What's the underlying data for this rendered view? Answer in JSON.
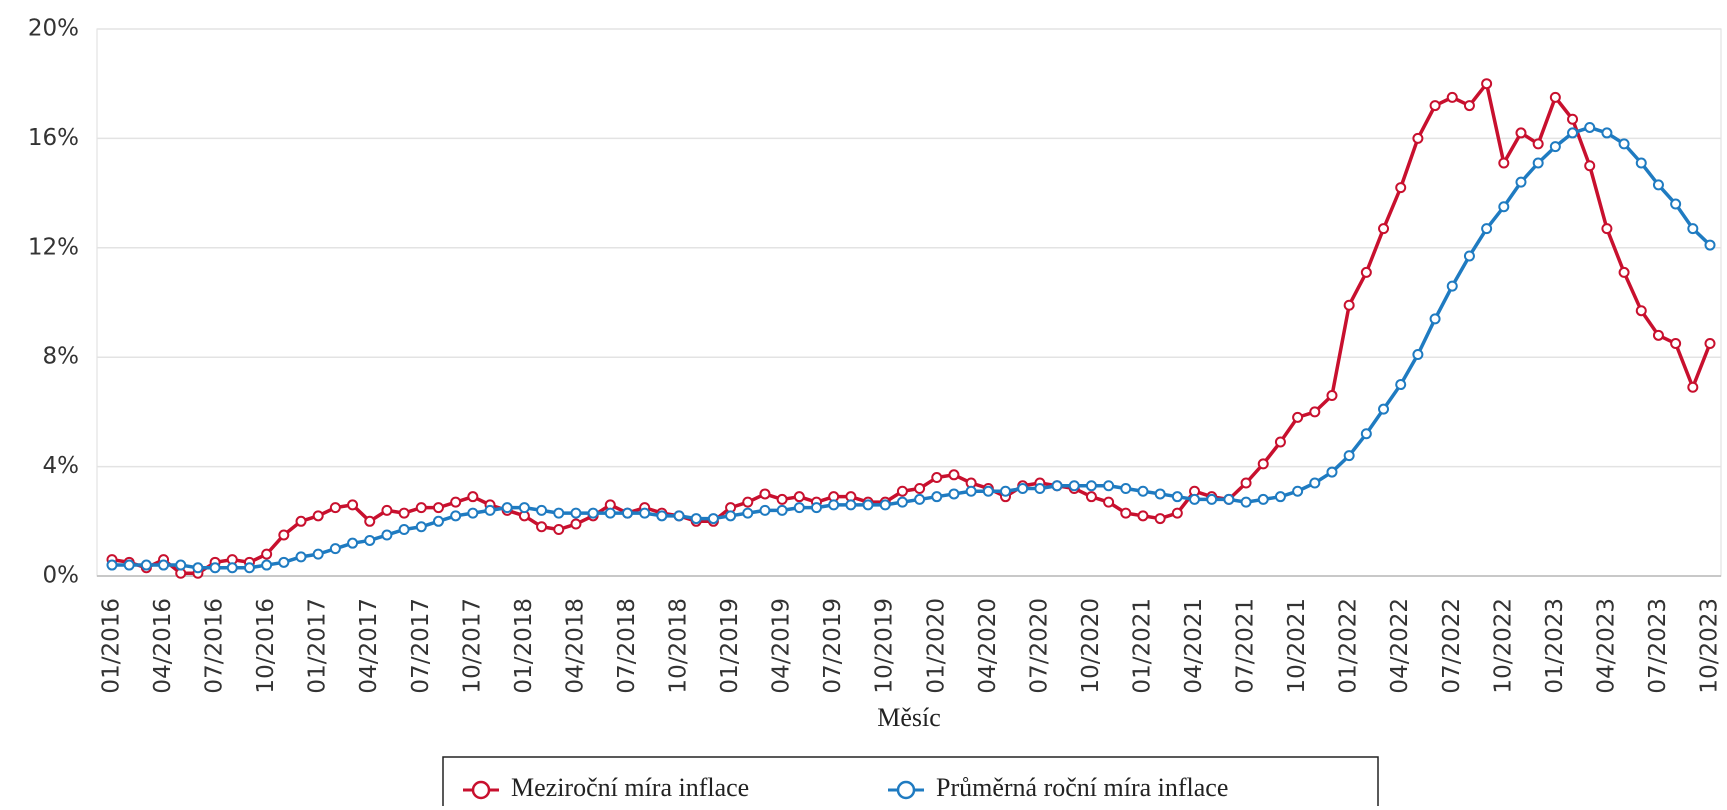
{
  "chart_data": {
    "type": "line",
    "x_label": "Měsíc",
    "categories": [
      "01/2016",
      null,
      null,
      "04/2016",
      null,
      null,
      "07/2016",
      null,
      null,
      "10/2016",
      null,
      null,
      "01/2017",
      null,
      null,
      "04/2017",
      null,
      null,
      "07/2017",
      null,
      null,
      "10/2017",
      null,
      null,
      "01/2018",
      null,
      null,
      "04/2018",
      null,
      null,
      "07/2018",
      null,
      null,
      "10/2018",
      null,
      null,
      "01/2019",
      null,
      null,
      "04/2019",
      null,
      null,
      "07/2019",
      null,
      null,
      "10/2019",
      null,
      null,
      "01/2020",
      null,
      null,
      "04/2020",
      null,
      null,
      "07/2020",
      null,
      null,
      "10/2020",
      null,
      null,
      "01/2021",
      null,
      null,
      "04/2021",
      null,
      null,
      "07/2021",
      null,
      null,
      "10/2021",
      null,
      null,
      "01/2022",
      null,
      null,
      "04/2022",
      null,
      null,
      "07/2022",
      null,
      null,
      "10/2022",
      null,
      null,
      "01/2023",
      null,
      null,
      "04/2023",
      null,
      null,
      "07/2023",
      null,
      null,
      "10/2023"
    ],
    "series": [
      {
        "name": "Meziroční míra inflace",
        "color": "#c8102e",
        "values": [
          0.6,
          0.5,
          0.3,
          0.6,
          0.1,
          0.1,
          0.5,
          0.6,
          0.5,
          0.8,
          1.5,
          2.0,
          2.2,
          2.5,
          2.6,
          2.0,
          2.4,
          2.3,
          2.5,
          2.5,
          2.7,
          2.9,
          2.6,
          2.4,
          2.2,
          1.8,
          1.7,
          1.9,
          2.2,
          2.6,
          2.3,
          2.5,
          2.3,
          2.2,
          2.0,
          2.0,
          2.5,
          2.7,
          3.0,
          2.8,
          2.9,
          2.7,
          2.9,
          2.9,
          2.7,
          2.7,
          3.1,
          3.2,
          3.6,
          3.7,
          3.4,
          3.2,
          2.9,
          3.3,
          3.4,
          3.3,
          3.2,
          2.9,
          2.7,
          2.3,
          2.2,
          2.1,
          2.3,
          3.1,
          2.9,
          2.8,
          3.4,
          4.1,
          4.9,
          5.8,
          6.0,
          6.6,
          9.9,
          11.1,
          12.7,
          14.2,
          16.0,
          17.2,
          17.5,
          17.2,
          18.0,
          15.1,
          16.2,
          15.8,
          17.5,
          16.7,
          15.0,
          12.7,
          11.1,
          9.7,
          8.8,
          8.5,
          6.9,
          8.5
        ]
      },
      {
        "name": "Průměrná roční míra inflace",
        "color": "#1f7bc1",
        "values": [
          0.4,
          0.4,
          0.4,
          0.4,
          0.4,
          0.3,
          0.3,
          0.3,
          0.3,
          0.4,
          0.5,
          0.7,
          0.8,
          1.0,
          1.2,
          1.3,
          1.5,
          1.7,
          1.8,
          2.0,
          2.2,
          2.3,
          2.4,
          2.5,
          2.5,
          2.4,
          2.3,
          2.3,
          2.3,
          2.3,
          2.3,
          2.3,
          2.2,
          2.2,
          2.1,
          2.1,
          2.2,
          2.3,
          2.4,
          2.4,
          2.5,
          2.5,
          2.6,
          2.6,
          2.6,
          2.6,
          2.7,
          2.8,
          2.9,
          3.0,
          3.1,
          3.1,
          3.1,
          3.2,
          3.2,
          3.3,
          3.3,
          3.3,
          3.3,
          3.2,
          3.1,
          3.0,
          2.9,
          2.8,
          2.8,
          2.8,
          2.7,
          2.8,
          2.9,
          3.1,
          3.4,
          3.8,
          4.4,
          5.2,
          6.1,
          7.0,
          8.1,
          9.4,
          10.6,
          11.7,
          12.7,
          13.5,
          14.4,
          15.1,
          15.7,
          16.2,
          16.4,
          16.2,
          15.8,
          15.1,
          14.3,
          13.6,
          12.7,
          12.1
        ]
      }
    ],
    "ylim": [
      0,
      20
    ],
    "yticks": [
      {
        "value": 0,
        "label": "0%"
      },
      {
        "value": 4,
        "label": "4%"
      },
      {
        "value": 8,
        "label": "8%"
      },
      {
        "value": 12,
        "label": "12%"
      },
      {
        "value": 16,
        "label": "16%"
      },
      {
        "value": 20,
        "label": "20%"
      }
    ],
    "grid": true,
    "legend": "bottom"
  }
}
